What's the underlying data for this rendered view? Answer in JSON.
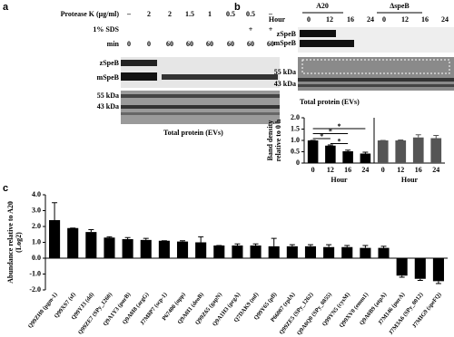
{
  "panel_a": {
    "letter": "a",
    "rows": [
      {
        "label": "Protease K (μg/ml)",
        "values": [
          "–",
          "2",
          "2",
          "1.5",
          "1",
          "0.5",
          "0.5",
          "–"
        ]
      },
      {
        "label": "1% SDS",
        "values": [
          "+",
          "+"
        ]
      },
      {
        "label": "min",
        "values": [
          "0",
          "0",
          "60",
          "60",
          "60",
          "60",
          "60",
          "60"
        ]
      }
    ],
    "blot_labels": [
      "zSpeB",
      "mSpeB",
      "55 kDa",
      "43 kDa"
    ],
    "caption": "Total protein (EVs)"
  },
  "panel_b": {
    "letter": "b",
    "groups": [
      "A20",
      "ΔspeB"
    ],
    "hour_label": "Hour",
    "hours": [
      "0",
      "12",
      "16",
      "24",
      "0",
      "12",
      "16",
      "24"
    ],
    "blot_labels": [
      "zSpeB",
      "mSpeB",
      "55 kDa",
      "43 kDa"
    ],
    "caption": "Total protein (EVs)"
  },
  "panel_c": {
    "letter": "c"
  },
  "chart_data": [
    {
      "type": "bar",
      "y_label": [
        "Band density",
        "relative to 0 h"
      ],
      "x_label": "Hour",
      "categories": [
        "0",
        "12",
        "16",
        "24"
      ],
      "values": [
        1.0,
        0.77,
        0.52,
        0.42
      ],
      "errors": [
        0,
        0.03,
        0.05,
        0.06
      ],
      "color": "#000000",
      "ylim": [
        0,
        2
      ],
      "yticks": [
        0,
        0.5,
        {
          "value": 1,
          "label": "1.0"
        },
        1.5,
        {
          "value": 2,
          "label": "2.0"
        }
      ],
      "annotations": [
        "*",
        "*",
        "*",
        "*"
      ]
    },
    {
      "type": "bar",
      "x_label": "Hour",
      "categories": [
        "0",
        "12",
        "16",
        "24"
      ],
      "values": [
        1.0,
        1.0,
        1.13,
        1.1
      ],
      "errors": [
        0,
        0.02,
        0.12,
        0.12
      ],
      "color": "#555555",
      "ylim": [
        0,
        2
      ]
    },
    {
      "type": "bar",
      "y_label": [
        "Abundance relative to A20",
        "(Log2)"
      ],
      "categories": [
        "Q99ZH0 (pgm-1)",
        "Q99XS7 (sf)",
        "Q99YJ3 (dd)",
        "Q99ZE7 (SPy_1260)",
        "Q9A1Y3 (purB)",
        "Q9A0I8 (argG)",
        "J7M8P7 (scp-1)",
        "P67400 (upp)",
        "Q9A0I1 (deoB)",
        "Q99Z65 (gapN)",
        "Q9A1H3 (prgA)",
        "Q7DAK9 (mf)",
        "Q99Y65 (pfl)",
        "P66007 (rplA)",
        "Q99ZE5 (SPy_1262)",
        "Q9A0Q0 (SPy_0855)",
        "Q99YN5 (cysM)",
        "Q99XV0 (emm1)",
        "Q9A0B9 (atpA)",
        "J7M146 (purA)",
        "J7M3A6 (SPy_0012)",
        "J7MIG9 (speFQ)"
      ],
      "values": [
        2.4,
        1.9,
        1.65,
        1.3,
        1.2,
        1.15,
        1.1,
        1.05,
        1.0,
        0.8,
        0.8,
        0.8,
        0.75,
        0.75,
        0.75,
        0.7,
        0.7,
        0.65,
        0.65,
        -1.1,
        -1.3,
        -1.45
      ],
      "errors": [
        1.1,
        0,
        0.15,
        0.05,
        0.1,
        0.1,
        0,
        0.05,
        0.35,
        0,
        0.1,
        0.1,
        0.5,
        0.1,
        0.1,
        0.15,
        0.1,
        0.15,
        0.1,
        0.1,
        0.1,
        0.15
      ],
      "color": "#000000",
      "ylim": [
        -2,
        4
      ],
      "yticks": [
        {
          "value": -2,
          "label": "-2.0"
        },
        {
          "value": -1,
          "label": "-1.0"
        },
        {
          "value": 0,
          "label": "0.0"
        },
        {
          "value": 1,
          "label": "1.0"
        },
        {
          "value": 2,
          "label": "2.0"
        },
        {
          "value": 3,
          "label": "3.0"
        },
        {
          "value": 4,
          "label": "4.0"
        }
      ]
    }
  ]
}
